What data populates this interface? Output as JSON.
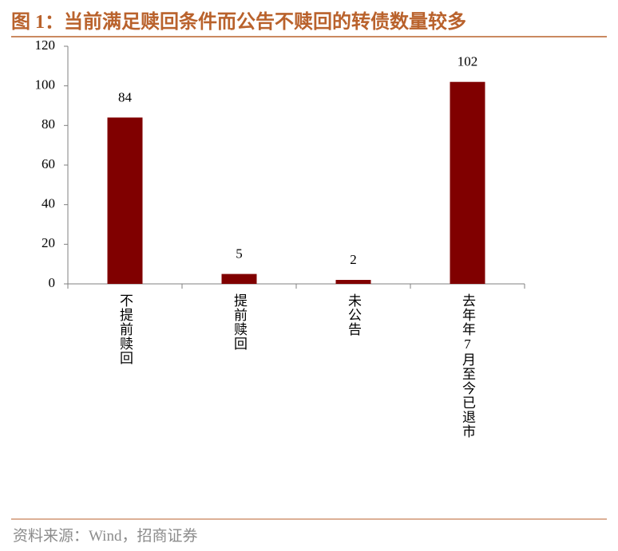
{
  "chart_data": {
    "type": "bar",
    "title": "图 1：当前满足赎回条件而公告不赎回的转债数量较多",
    "categories": [
      "不提前赎回",
      "提前赎回",
      "未公告",
      "去年年7月至今已退市"
    ],
    "values": [
      84,
      5,
      2,
      102
    ],
    "color": "#800000",
    "ylim": [
      0,
      120
    ],
    "yticks": [
      0,
      20,
      40,
      60,
      80,
      100,
      120
    ],
    "grid": false,
    "source": "资料来源：Wind，招商证券"
  }
}
